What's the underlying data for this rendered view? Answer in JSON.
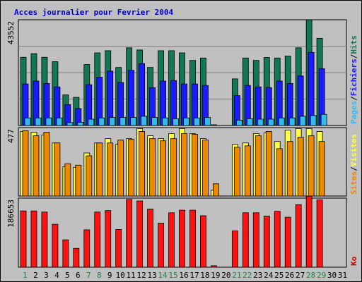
{
  "chart_data": {
    "type": "bar",
    "title": "Acces journalier pour Fevrier 2004",
    "days": [
      "1",
      "2",
      "3",
      "4",
      "5",
      "6",
      "7",
      "8",
      "9",
      "10",
      "11",
      "12",
      "13",
      "14",
      "15",
      "16",
      "17",
      "18",
      "19",
      "20",
      "21",
      "22",
      "23",
      "24",
      "25",
      "26",
      "27",
      "28",
      "29",
      "30",
      "31"
    ],
    "weekend_days": [
      "1",
      "7",
      "8",
      "14",
      "15",
      "21",
      "22",
      "28",
      "29"
    ],
    "panels": [
      {
        "name": "hits",
        "y_max_label": "43552",
        "ylim": [
          0,
          43552
        ],
        "legend": [
          {
            "label": "Pages",
            "color": "#33bbee"
          },
          {
            "label": "/",
            "color": "#000000"
          },
          {
            "label": "Fichiers",
            "color": "#1a1aff"
          },
          {
            "label": "/",
            "color": "#000000"
          },
          {
            "label": "Hits",
            "color": "#117755"
          }
        ],
        "series": [
          {
            "name": "Hits",
            "color": "#117755",
            "offset": 0,
            "values": [
              28100,
              29600,
              28100,
              26300,
              12600,
              11600,
              25100,
              29900,
              30800,
              23900,
              32000,
              31100,
              23900,
              30800,
              30800,
              29900,
              26800,
              27800,
              300,
              0,
              19200,
              27800,
              26800,
              28000,
              27800,
              28600,
              32000,
              43500,
              35900,
              0,
              0
            ]
          },
          {
            "name": "Fichiers",
            "color": "#1a1aff",
            "offset": 1,
            "values": [
              17100,
              18300,
              17300,
              15900,
              8600,
              7000,
              16800,
              19900,
              22400,
              17700,
              22700,
              25500,
              15600,
              18300,
              18500,
              17100,
              17100,
              16500,
              0,
              0,
              12300,
              16500,
              15900,
              15600,
              18300,
              17300,
              20400,
              30100,
              23400,
              0,
              0
            ]
          },
          {
            "name": "Pages",
            "color": "#33bbee",
            "offset": 2,
            "values": [
              3100,
              3100,
              3100,
              3100,
              1200,
              1300,
              2600,
              3100,
              3300,
              3300,
              3300,
              3800,
              3300,
              3100,
              2800,
              3100,
              3100,
              3300,
              0,
              0,
              2200,
              2800,
              2600,
              2600,
              3100,
              3100,
              3800,
              4100,
              4600,
              0,
              0
            ]
          }
        ]
      },
      {
        "name": "visits",
        "y_max_label": "477",
        "ylim": [
          0,
          477
        ],
        "legend": [
          {
            "label": "Sites",
            "color": "#ee8800"
          },
          {
            "label": "/",
            "color": "#000000"
          },
          {
            "label": "Visites",
            "color": "#ffff44"
          }
        ],
        "series": [
          {
            "name": "Visites",
            "color": "#ffff44",
            "offset": 0,
            "values": [
              450,
              445,
              425,
              370,
              205,
              200,
              300,
              370,
              400,
              360,
              400,
              470,
              420,
              400,
              435,
              470,
              435,
              400,
              40,
              0,
              360,
              370,
              435,
              440,
              380,
              460,
              470,
              470,
              450,
              0,
              0
            ]
          },
          {
            "name": "Sites",
            "color": "#ee8800",
            "offset": 1,
            "values": [
              455,
              420,
              445,
              370,
              225,
              215,
              280,
              370,
              370,
              390,
              395,
              450,
              400,
              385,
              400,
              435,
              430,
              390,
              85,
              0,
              340,
              350,
              420,
              450,
              330,
              380,
              410,
              420,
              380,
              0,
              0
            ]
          }
        ]
      },
      {
        "name": "ko",
        "y_max_label": "186653",
        "ylim": [
          0,
          186653
        ],
        "legend": [
          {
            "label": "Ko",
            "color": "#cc0000"
          }
        ],
        "series": [
          {
            "name": "Ko",
            "color": "#ff1111",
            "offset": 0,
            "values": [
              152000,
              152000,
              149000,
              116000,
              74000,
              51000,
              101000,
              149000,
              153000,
              102000,
              183000,
              179000,
              157000,
              119000,
              147000,
              154000,
              154000,
              139000,
              4000,
              0,
              98000,
              147000,
              147000,
              138000,
              151000,
              135000,
              169000,
              192000,
              182000,
              0,
              0
            ]
          }
        ]
      }
    ]
  }
}
